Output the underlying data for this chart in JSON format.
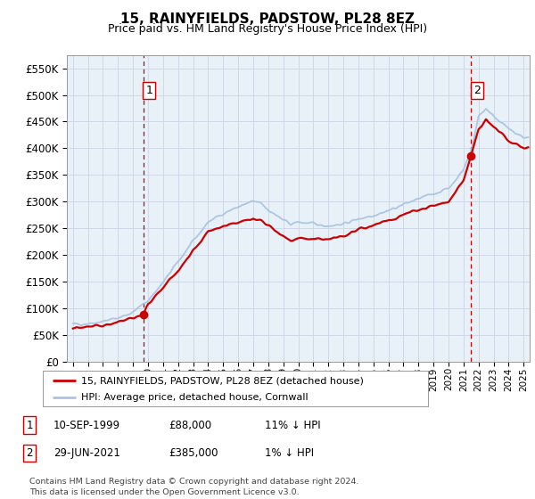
{
  "title": "15, RAINYFIELDS, PADSTOW, PL28 8EZ",
  "subtitle": "Price paid vs. HM Land Registry's House Price Index (HPI)",
  "ylim": [
    0,
    575000
  ],
  "yticks": [
    0,
    50000,
    100000,
    150000,
    200000,
    250000,
    300000,
    350000,
    400000,
    450000,
    500000,
    550000
  ],
  "xlim_start": 1994.6,
  "xlim_end": 2025.4,
  "purchase1_date": 1999.69,
  "purchase1_price": 88000,
  "purchase2_date": 2021.49,
  "purchase2_price": 385000,
  "hpi_color": "#aac4e0",
  "price_color": "#cc0000",
  "vline_color": "#cc0000",
  "grid_color": "#d0d8e8",
  "plot_bg_color": "#e8f0f8",
  "bg_color": "#ffffff",
  "legend_label_red": "15, RAINYFIELDS, PADSTOW, PL28 8EZ (detached house)",
  "legend_label_blue": "HPI: Average price, detached house, Cornwall",
  "footer": "Contains HM Land Registry data © Crown copyright and database right 2024.\nThis data is licensed under the Open Government Licence v3.0.",
  "table_rows": [
    {
      "num": "1",
      "date": "10-SEP-1999",
      "price": "£88,000",
      "hpi": "11% ↓ HPI"
    },
    {
      "num": "2",
      "date": "29-JUN-2021",
      "price": "£385,000",
      "hpi": "1% ↓ HPI"
    }
  ],
  "hpi_xknots": [
    1995,
    1996,
    1997,
    1998,
    1999,
    2000,
    2001,
    2002,
    2003,
    2004,
    2005,
    2006,
    2007,
    2007.5,
    2008,
    2009,
    2009.5,
    2010,
    2011,
    2012,
    2013,
    2014,
    2015,
    2016,
    2017,
    2018,
    2019,
    2020,
    2021,
    2021.5,
    2022,
    2022.5,
    2023,
    2023.5,
    2024,
    2025
  ],
  "hpi_yknots": [
    70000,
    72000,
    76000,
    82000,
    93000,
    115000,
    148000,
    188000,
    225000,
    262000,
    278000,
    290000,
    300000,
    298000,
    285000,
    265000,
    258000,
    262000,
    258000,
    255000,
    258000,
    268000,
    275000,
    283000,
    295000,
    305000,
    315000,
    325000,
    360000,
    395000,
    460000,
    475000,
    460000,
    450000,
    435000,
    420000
  ],
  "price_xknots": [
    1995,
    1996,
    1997,
    1998,
    1999,
    1999.69,
    2000,
    2001,
    2002,
    2003,
    2004,
    2005,
    2006,
    2007,
    2007.5,
    2008,
    2009,
    2009.5,
    2010,
    2011,
    2012,
    2013,
    2014,
    2015,
    2016,
    2017,
    2018,
    2019,
    2020,
    2020.5,
    2021,
    2021.49,
    2022,
    2022.5,
    2023,
    2023.5,
    2024,
    2025
  ],
  "price_yknots": [
    63000,
    65000,
    68000,
    74000,
    84000,
    88000,
    108000,
    138000,
    170000,
    208000,
    243000,
    255000,
    262000,
    268000,
    265000,
    255000,
    235000,
    228000,
    232000,
    230000,
    228000,
    235000,
    248000,
    255000,
    265000,
    275000,
    285000,
    293000,
    300000,
    320000,
    340000,
    385000,
    435000,
    455000,
    440000,
    430000,
    415000,
    400000
  ]
}
